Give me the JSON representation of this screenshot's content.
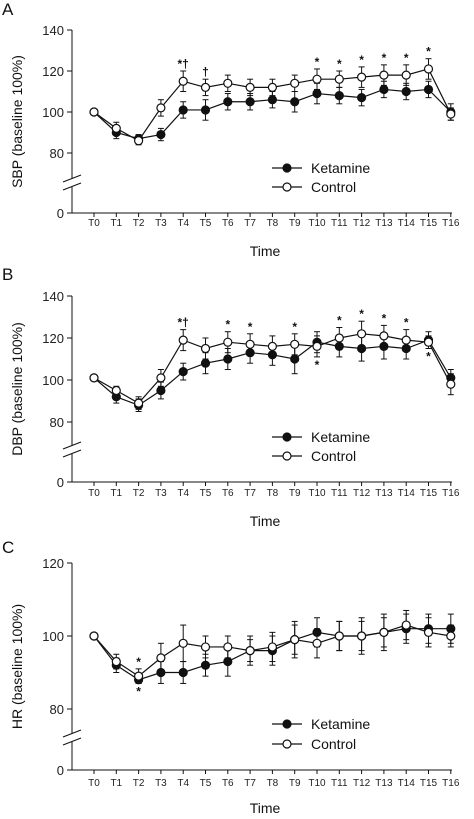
{
  "chart_data": [
    {
      "type": "line",
      "panel": "A",
      "ylabel": "SBP (baseline 100%)",
      "xlabel": "Time",
      "categories": [
        "T0",
        "T1",
        "T2",
        "T3",
        "T4",
        "T5",
        "T6",
        "T7",
        "T8",
        "T9",
        "T10",
        "T11",
        "T12",
        "T13",
        "T14",
        "T15",
        "T16"
      ],
      "y_ticks": [
        0,
        80,
        100,
        120,
        140
      ],
      "axis_break": true,
      "ylim": [
        80,
        140
      ],
      "legend": "bottom-right",
      "series": [
        {
          "name": "Ketamine",
          "marker": "filled-circle",
          "values": [
            100,
            90,
            87,
            89,
            101,
            101,
            105,
            105,
            106,
            105,
            109,
            108,
            107,
            111,
            110,
            111,
            100
          ],
          "errors": [
            0,
            3,
            2,
            3,
            4,
            5,
            4,
            4,
            4,
            5,
            5,
            4,
            4,
            4,
            4,
            4,
            4
          ]
        },
        {
          "name": "Control",
          "marker": "open-circle",
          "values": [
            100,
            92,
            86,
            102,
            115,
            112,
            114,
            112,
            112,
            114,
            116,
            116,
            117,
            118,
            118,
            121,
            99
          ],
          "errors": [
            0,
            3,
            2,
            4,
            5,
            4,
            4,
            4,
            4,
            4,
            5,
            4,
            5,
            5,
            5,
            5,
            3
          ]
        }
      ],
      "annotations": [
        {
          "category": "T4",
          "text": "*†"
        },
        {
          "category": "T5",
          "text": "†"
        },
        {
          "category": "T10",
          "text": "*"
        },
        {
          "category": "T11",
          "text": "*"
        },
        {
          "category": "T12",
          "text": "*"
        },
        {
          "category": "T13",
          "text": "*"
        },
        {
          "category": "T14",
          "text": "*"
        },
        {
          "category": "T15",
          "text": "*"
        }
      ]
    },
    {
      "type": "line",
      "panel": "B",
      "ylabel": "DBP (baseline 100%)",
      "xlabel": "Time",
      "categories": [
        "T0",
        "T1",
        "T2",
        "T3",
        "T4",
        "T5",
        "T6",
        "T7",
        "T8",
        "T9",
        "T10",
        "T11",
        "T12",
        "T13",
        "T14",
        "T15",
        "T16"
      ],
      "y_ticks": [
        0,
        80,
        100,
        120,
        140
      ],
      "axis_break": true,
      "ylim": [
        80,
        140
      ],
      "legend": "bottom-right",
      "series": [
        {
          "name": "Ketamine",
          "marker": "filled-circle",
          "values": [
            101,
            92,
            88,
            95,
            104,
            108,
            110,
            113,
            112,
            110,
            118,
            116,
            115,
            116,
            115,
            119,
            101
          ],
          "errors": [
            0,
            3,
            3,
            4,
            4,
            5,
            5,
            5,
            5,
            7,
            5,
            5,
            6,
            6,
            5,
            4,
            4
          ]
        },
        {
          "name": "Control",
          "marker": "open-circle",
          "values": [
            101,
            95,
            89,
            101,
            119,
            115,
            118,
            117,
            116,
            117,
            116,
            120,
            122,
            121,
            119,
            118,
            98
          ],
          "errors": [
            0,
            2,
            3,
            4,
            5,
            5,
            5,
            5,
            5,
            5,
            5,
            5,
            6,
            5,
            5,
            3,
            5
          ]
        }
      ],
      "annotations": [
        {
          "category": "T4",
          "text": "*†"
        },
        {
          "category": "T6",
          "text": "*"
        },
        {
          "category": "T7",
          "text": "*"
        },
        {
          "category": "T9",
          "text": "*"
        },
        {
          "category": "T10",
          "text": "*",
          "position": "below"
        },
        {
          "category": "T11",
          "text": "*"
        },
        {
          "category": "T12",
          "text": "*"
        },
        {
          "category": "T13",
          "text": "*"
        },
        {
          "category": "T14",
          "text": "*"
        },
        {
          "category": "T15",
          "text": "*",
          "position": "below"
        }
      ]
    },
    {
      "type": "line",
      "panel": "C",
      "ylabel": "HR (baseline 100%)",
      "xlabel": "Time",
      "categories": [
        "T0",
        "T1",
        "T2",
        "T3",
        "T4",
        "T5",
        "T6",
        "T7",
        "T8",
        "T9",
        "T10",
        "T11",
        "T12",
        "T13",
        "T14",
        "T15",
        "T16"
      ],
      "y_ticks": [
        0,
        80,
        100,
        120
      ],
      "axis_break": true,
      "ylim": [
        80,
        120
      ],
      "legend": "bottom-right",
      "series": [
        {
          "name": "Ketamine",
          "marker": "filled-circle",
          "values": [
            100,
            92,
            88,
            90,
            90,
            92,
            93,
            96,
            96,
            99,
            101,
            100,
            100,
            101,
            102,
            102,
            102
          ],
          "errors": [
            0,
            2,
            1,
            3,
            3,
            3,
            4,
            4,
            4,
            4,
            4,
            4,
            4,
            4,
            4,
            4,
            4
          ]
        },
        {
          "name": "Control",
          "marker": "open-circle",
          "values": [
            100,
            93,
            89,
            94,
            98,
            97,
            97,
            96,
            97,
            99,
            98,
            100,
            100,
            101,
            103,
            101,
            100
          ],
          "errors": [
            0,
            2,
            2,
            4,
            5,
            3,
            3,
            3,
            4,
            5,
            4,
            4,
            5,
            5,
            4,
            4,
            3
          ]
        }
      ],
      "annotations": [
        {
          "category": "T2",
          "text": "*"
        },
        {
          "category": "T2",
          "text": "*",
          "position": "below"
        }
      ]
    }
  ]
}
